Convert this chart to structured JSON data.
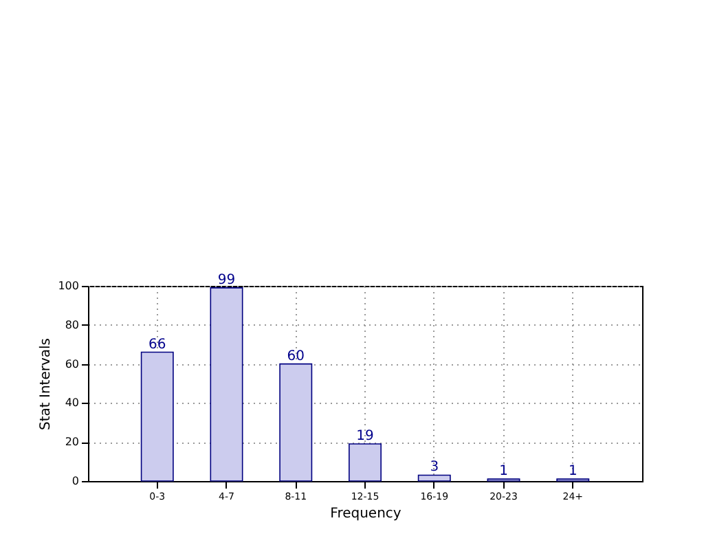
{
  "chart_data": {
    "type": "bar",
    "xlabel": "Frequency",
    "ylabel": "Stat Intervals",
    "categories": [
      "0-3",
      "4-7",
      "8-11",
      "12-15",
      "16-19",
      "20-23",
      "24+"
    ],
    "values": [
      66,
      99,
      60,
      19,
      3,
      1,
      1
    ],
    "color": "#ccccee",
    "ylim": [
      0,
      100
    ],
    "yticks": [
      0,
      20,
      40,
      60,
      80,
      100
    ],
    "grid": true,
    "data_labels": true
  }
}
